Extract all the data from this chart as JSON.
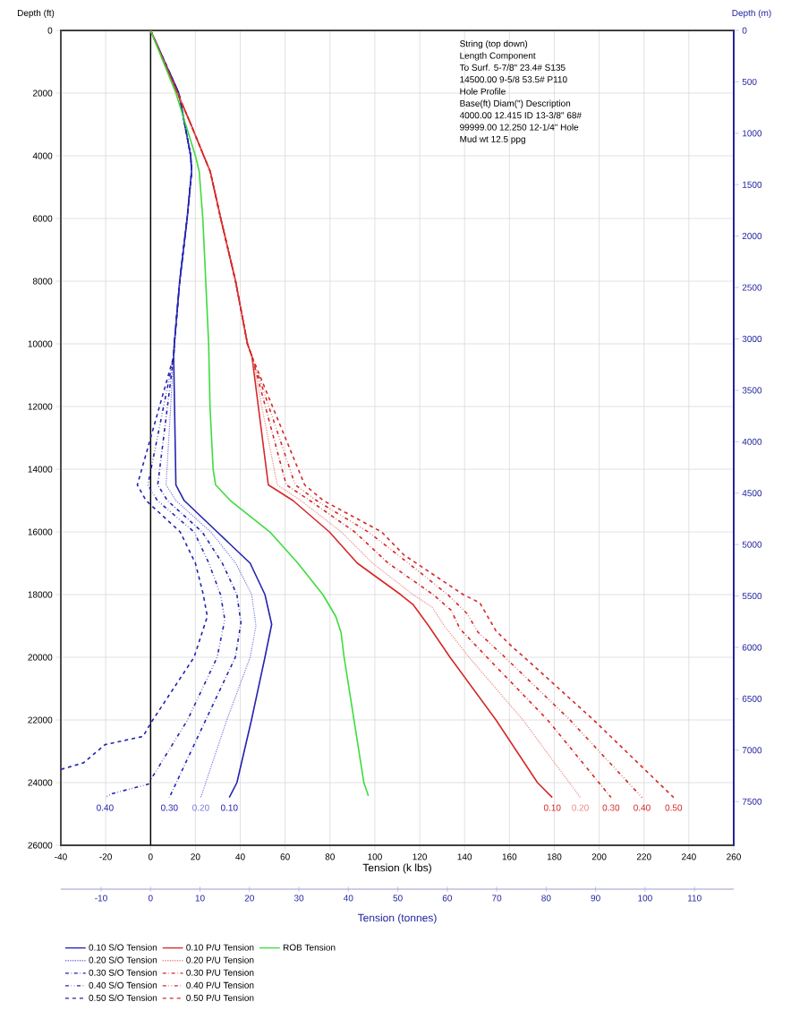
{
  "chart_data": {
    "type": "line",
    "xlabel": "Tension (k lbs)",
    "ylabel": "Depth (ft)",
    "y2label": "Depth (m)",
    "x2label": "Tension (tonnes)",
    "xlim": [
      -40,
      260
    ],
    "xticks": [
      -40,
      -20,
      0,
      20,
      40,
      60,
      80,
      100,
      120,
      140,
      160,
      180,
      200,
      220,
      240,
      260
    ],
    "ylim": [
      26000,
      0
    ],
    "yticks": [
      0,
      2000,
      4000,
      6000,
      8000,
      10000,
      12000,
      14000,
      16000,
      18000,
      20000,
      22000,
      24000,
      26000
    ],
    "y2lim": [
      7924.8,
      0
    ],
    "y2ticks": [
      0,
      500,
      1000,
      1500,
      2000,
      2500,
      3000,
      3500,
      4000,
      4500,
      5000,
      5500,
      6000,
      6500,
      7000,
      7500
    ],
    "x2lim": [
      -18.14,
      117.93
    ],
    "x2ticks": [
      -10,
      0,
      10,
      20,
      30,
      40,
      50,
      60,
      70,
      80,
      90,
      100,
      110
    ],
    "grid": true,
    "legend": "bottom",
    "marker": "none",
    "ref_lines": [
      {
        "axis": "x",
        "value": 0,
        "color": "#000000"
      }
    ],
    "series": [
      {
        "name": "0.10 S/O Tension",
        "color": "#2323b0",
        "line_style": "solid",
        "x": [
          0,
          12.6,
          17.9,
          18.3,
          16.3,
          13,
          10.6,
          10.3,
          11.3,
          15,
          29.7,
          44.4,
          51,
          54,
          51,
          45,
          38.5,
          35.1
        ],
        "values": [
          0,
          2000,
          4000,
          4500,
          6000,
          8000,
          10000,
          10400,
          14500,
          15000,
          16000,
          17000,
          18000,
          18950,
          20000,
          22000,
          24000,
          24474
        ]
      },
      {
        "name": "0.20 S/O Tension",
        "color": "#7b7bdc",
        "line_style": "dotted",
        "x": [
          0,
          12.6,
          17.9,
          18.3,
          16.3,
          13,
          10.6,
          10.3,
          6.9,
          11.3,
          26.8,
          38,
          45.1,
          47,
          44.4,
          34,
          22.4
        ],
        "values": [
          0,
          2000,
          4000,
          4500,
          6000,
          8000,
          10000,
          10400,
          14500,
          15000,
          16000,
          17000,
          18000,
          19000,
          20000,
          22000,
          24474
        ]
      },
      {
        "name": "0.30 S/O Tension",
        "color": "#2323b0",
        "line_style": "dashdot",
        "x": [
          0,
          12.6,
          17.9,
          18.3,
          16.3,
          13,
          10.6,
          10.3,
          3.2,
          7.5,
          23,
          32,
          38.5,
          40.3,
          37.8,
          24.6,
          8.4
        ],
        "values": [
          0,
          2000,
          4000,
          4500,
          6000,
          8000,
          10000,
          10400,
          14500,
          15000,
          16000,
          17000,
          18000,
          18900,
          20000,
          22000,
          24474
        ]
      },
      {
        "name": "0.40 S/O Tension",
        "color": "#2323b0",
        "line_style": "dashdotdot",
        "x": [
          0,
          12.6,
          17.9,
          18.3,
          16.3,
          13,
          10.6,
          10.3,
          -1.2,
          3,
          19.4,
          26,
          31.2,
          33.1,
          29.7,
          16.5,
          1,
          -1,
          -17,
          -20.3
        ],
        "values": [
          0,
          2000,
          4000,
          4500,
          6000,
          8000,
          10000,
          10400,
          14500,
          15000,
          16000,
          17000,
          18000,
          18800,
          20000,
          22000,
          23800,
          24050,
          24350,
          24474
        ]
      },
      {
        "name": "0.50 S/O Tension",
        "color": "#2323b0",
        "line_style": "dashed",
        "x": [
          0,
          12.6,
          17.9,
          18.3,
          16.3,
          13,
          10.6,
          10.3,
          -5.9,
          -2,
          13.2,
          20,
          23.5,
          25.3,
          19.4,
          1,
          -3.4,
          -20.3,
          -29.9,
          -40
        ],
        "values": [
          0,
          2000,
          4000,
          4500,
          6000,
          8000,
          10000,
          10400,
          14500,
          15000,
          16000,
          17000,
          18000,
          18700,
          20000,
          22000,
          22526,
          22789,
          23368,
          23580
        ]
      },
      {
        "name": "0.10 P/U Tension",
        "color": "#d62828",
        "line_style": "solid",
        "x": [
          0,
          12,
          18,
          23.7,
          26.6,
          31.3,
          37.9,
          43.2,
          45.2,
          52.5,
          63.5,
          79.7,
          92.2,
          111.5,
          117,
          124,
          133.5,
          154,
          172.5,
          179.1
        ],
        "values": [
          0,
          2000,
          3000,
          4000,
          4500,
          6000,
          8000,
          10000,
          10400,
          14500,
          15000,
          16000,
          17000,
          18000,
          18316,
          19000,
          20000,
          22000,
          24000,
          24474
        ]
      },
      {
        "name": "0.20 P/U Tension",
        "color": "#ec8a8a",
        "line_style": "dotted",
        "x": [
          0,
          12,
          18,
          23.7,
          26.6,
          31.3,
          37.9,
          43.2,
          45.2,
          56.5,
          67,
          85,
          99,
          117,
          125.5,
          131,
          142,
          166,
          191.6
        ],
        "values": [
          0,
          2000,
          3000,
          4000,
          4500,
          6000,
          8000,
          10000,
          10400,
          14500,
          15000,
          16000,
          17000,
          18000,
          18400,
          19000,
          20000,
          22000,
          24474
        ]
      },
      {
        "name": "0.30 P/U Tension",
        "color": "#d62828",
        "line_style": "dashdot",
        "x": [
          0,
          12,
          18,
          23.7,
          26.6,
          31.3,
          37.9,
          43.2,
          45.2,
          60.5,
          71,
          91,
          106,
          126,
          134,
          138,
          150,
          177,
          205.3
        ],
        "values": [
          0,
          2000,
          3000,
          4000,
          4500,
          6000,
          8000,
          10000,
          10400,
          14500,
          15000,
          16000,
          17000,
          18000,
          18500,
          19100,
          20000,
          22000,
          24474
        ]
      },
      {
        "name": "0.40 P/U Tension",
        "color": "#d62828",
        "line_style": "dashdotdot",
        "x": [
          0,
          12,
          18,
          23.7,
          26.6,
          31.3,
          37.9,
          43.2,
          45.2,
          64.5,
          74,
          97,
          115,
          132.5,
          141,
          146,
          158,
          187,
          219.1
        ],
        "values": [
          0,
          2000,
          3000,
          4000,
          4500,
          6000,
          8000,
          10000,
          10400,
          14500,
          15000,
          16000,
          17000,
          18000,
          18600,
          19200,
          20000,
          22000,
          24474
        ]
      },
      {
        "name": "0.50 P/U Tension",
        "color": "#d62828",
        "line_style": "dashed",
        "x": [
          0,
          12,
          18,
          23.7,
          26.6,
          31.3,
          37.9,
          43.2,
          45.2,
          68.7,
          77,
          103,
          113,
          124,
          139.4,
          146.8,
          154,
          161.5,
          166.6,
          197.5,
          233.2
        ],
        "values": [
          0,
          2000,
          3000,
          4000,
          4500,
          6000,
          8000,
          10000,
          10400,
          14500,
          15000,
          16000,
          16737,
          17263,
          18000,
          18263,
          19158,
          19684,
          20000,
          22000,
          24474
        ]
      },
      {
        "name": "ROB Tension",
        "color": "#3ddc3d",
        "line_style": "solid",
        "x": [
          0,
          11.3,
          20,
          21.7,
          23.3,
          24.6,
          25.9,
          26.5,
          27.9,
          29,
          35.6,
          44.4,
          53.2,
          65.7,
          76.8,
          82.6,
          84.9,
          86.3,
          90.7,
          95.1,
          97.1
        ],
        "values": [
          0,
          2000,
          4000,
          4500,
          6000,
          8000,
          10000,
          12000,
          14000,
          14500,
          15000,
          15500,
          16000,
          17000,
          18000,
          18700,
          19200,
          20000,
          22000,
          24000,
          24421
        ]
      }
    ],
    "annotations": [
      "String (top down)",
      "Length   Component",
      "To Surf.  5-7/8\" 23.4# S135",
      "14500.00 9-5/8 53.5# P110",
      "Hole Profile",
      "Base(ft) Diam(\") Description",
      "4000.00   12.415  ID 13-3/8\" 68#",
      "99999.00  12.250  12-1/4\" Hole",
      "Mud wt   12.5 ppg",
      {
        "text": "0.40",
        "x": -20.3,
        "y": 24500
      },
      {
        "text": "0.30",
        "x": 8.4,
        "y": 24500
      },
      {
        "text": "0.20",
        "x": 22.4,
        "y": 24500
      },
      {
        "text": "0.10",
        "x": 35.1,
        "y": 24500
      },
      {
        "text": "0.10",
        "x": 179.1,
        "y": 24500
      },
      {
        "text": "0.20",
        "x": 191.6,
        "y": 24500
      },
      {
        "text": "0.30",
        "x": 205.3,
        "y": 24500
      },
      {
        "text": "0.40",
        "x": 219.1,
        "y": 24500
      },
      {
        "text": "0.50",
        "x": 233.2,
        "y": 24500
      }
    ]
  }
}
